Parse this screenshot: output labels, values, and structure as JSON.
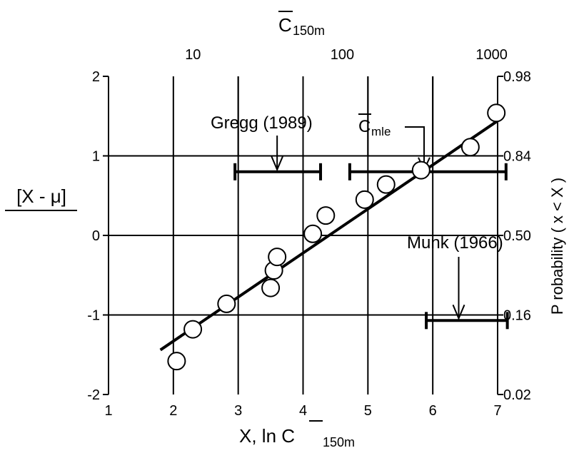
{
  "chart_data": {
    "type": "scatter",
    "xlabel": "X, ln C",
    "xlabel_sub": "150m",
    "top_label": "C",
    "top_label_sub": "150m",
    "ylabel": "[X - μ]",
    "right_label": "P robability ( x < X )",
    "xlim": [
      1,
      7
    ],
    "ylim": [
      -2,
      2
    ],
    "x_ticks": [
      "1",
      "2",
      "3",
      "4",
      "5",
      "6",
      "7"
    ],
    "y_ticks": [
      "-2",
      "-1",
      "0",
      "1",
      "2"
    ],
    "top_ticks": [
      "10",
      "100",
      "1000"
    ],
    "right_ticks": [
      "0.02",
      "0.16",
      "0.50",
      "0.84",
      "0.98"
    ],
    "grid": true,
    "points": [
      {
        "x": 2.05,
        "y": -1.58
      },
      {
        "x": 2.3,
        "y": -1.18
      },
      {
        "x": 2.82,
        "y": -0.86
      },
      {
        "x": 3.5,
        "y": -0.66
      },
      {
        "x": 3.55,
        "y": -0.44
      },
      {
        "x": 3.6,
        "y": -0.27
      },
      {
        "x": 4.15,
        "y": 0.02
      },
      {
        "x": 4.35,
        "y": 0.25
      },
      {
        "x": 4.95,
        "y": 0.45
      },
      {
        "x": 5.28,
        "y": 0.64
      },
      {
        "x": 5.82,
        "y": 0.82
      },
      {
        "x": 6.58,
        "y": 1.11
      },
      {
        "x": 6.98,
        "y": 1.54
      }
    ],
    "fit_line": {
      "x": [
        1.8,
        7.0
      ],
      "y": [
        -1.44,
        1.44
      ]
    },
    "annotations": [
      {
        "label": "Gregg (1989)",
        "range": [
          2.95,
          4.27
        ],
        "y": 0.8,
        "arrow_x": 3.6
      },
      {
        "label": "C",
        "label_sub": "mle",
        "range": [
          4.72,
          7.13
        ],
        "y": 0.8,
        "arrow_x": 5.85
      },
      {
        "label": "Munk (1966)",
        "range": [
          5.9,
          7.15
        ],
        "y": -1.07,
        "arrow_x": 6.4
      }
    ]
  }
}
